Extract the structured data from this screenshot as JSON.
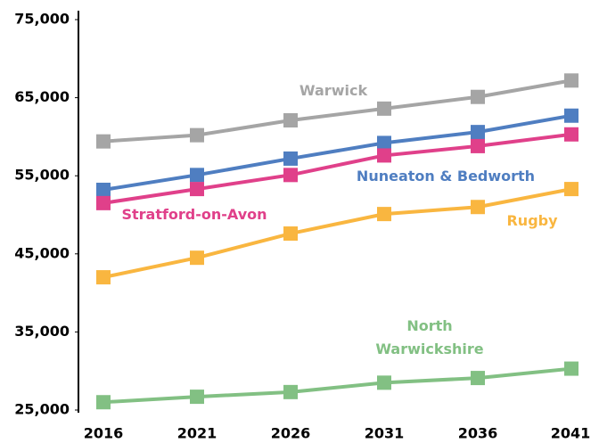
{
  "chart_data": {
    "type": "line",
    "categories": [
      "2016",
      "2021",
      "2026",
      "2031",
      "2036",
      "2041"
    ],
    "series": [
      {
        "name": "Warwick",
        "color": "#a5a5a5",
        "values": [
          59400,
          60200,
          62100,
          63600,
          65100,
          67200
        ]
      },
      {
        "name": "Nuneaton & Bedworth",
        "color": "#4f7ec1",
        "values": [
          53200,
          55100,
          57200,
          59200,
          60600,
          62700
        ]
      },
      {
        "name": "Stratford-on-Avon",
        "color": "#e0408a",
        "values": [
          51500,
          53300,
          55100,
          57600,
          58800,
          60300
        ]
      },
      {
        "name": "Rugby",
        "color": "#f9b640",
        "values": [
          42000,
          44500,
          47600,
          50100,
          51000,
          53300
        ]
      },
      {
        "name": "North Warwickshire",
        "color": "#82c083",
        "values": [
          26000,
          26700,
          27300,
          28500,
          29100,
          30300
        ]
      }
    ],
    "ylim": [
      25000,
      75000
    ],
    "yticks": [
      {
        "value": 25000,
        "label": "25,000"
      },
      {
        "value": 35000,
        "label": "35,000"
      },
      {
        "value": 45000,
        "label": "45,000"
      },
      {
        "value": 55000,
        "label": "55,000"
      },
      {
        "value": 65000,
        "label": "65,000"
      },
      {
        "value": 75000,
        "label": "75,000"
      }
    ],
    "grid": false
  }
}
